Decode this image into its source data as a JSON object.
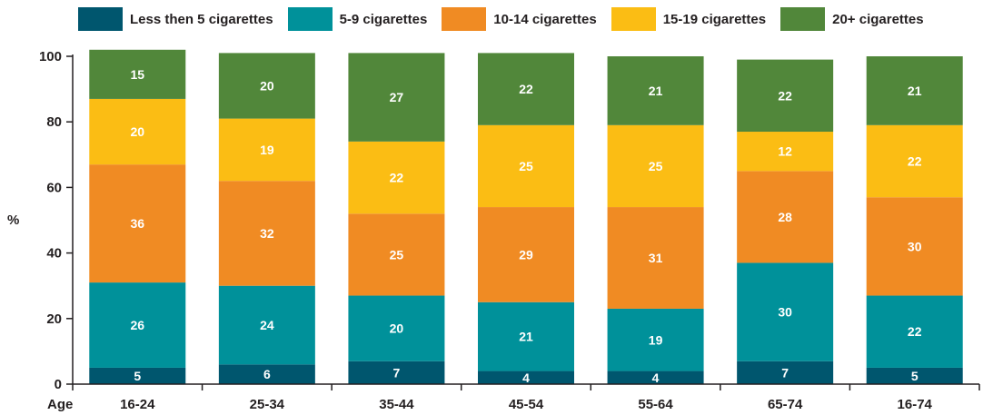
{
  "chart_data": {
    "type": "bar",
    "stacked": true,
    "categories": [
      "16-24",
      "25-34",
      "35-44",
      "45-54",
      "55-64",
      "65-74",
      "16-74"
    ],
    "series": [
      {
        "name": "Less then 5 cigarettes",
        "color": "#00566e",
        "values": [
          5,
          6,
          7,
          4,
          4,
          7,
          5
        ]
      },
      {
        "name": "5-9 cigarettes",
        "color": "#00919a",
        "values": [
          26,
          24,
          20,
          21,
          19,
          30,
          22
        ]
      },
      {
        "name": "10-14 cigarettes",
        "color": "#f08b23",
        "values": [
          36,
          32,
          25,
          29,
          31,
          28,
          30
        ]
      },
      {
        "name": "15-19 cigarettes",
        "color": "#fbbd14",
        "values": [
          20,
          19,
          22,
          25,
          25,
          12,
          22
        ]
      },
      {
        "name": "20+ cigarettes",
        "color": "#51873a",
        "values": [
          15,
          20,
          27,
          22,
          21,
          22,
          21
        ]
      }
    ],
    "xlabel": "Age",
    "ylabel": "%",
    "ylim": [
      0,
      100
    ],
    "yticks": [
      0,
      20,
      40,
      60,
      80,
      100
    ],
    "legend_position": "top",
    "grid": false
  }
}
